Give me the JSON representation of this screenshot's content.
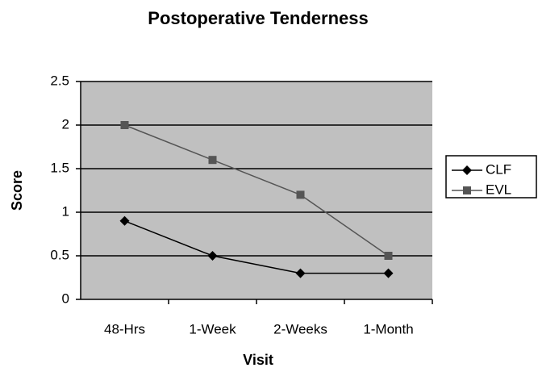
{
  "chart_data": {
    "type": "line",
    "title": "Postoperative Tenderness",
    "x_label": "Visit",
    "y_label": "Score",
    "categories": [
      "48-Hrs",
      "1-Week",
      "2-Weeks",
      "1-Month"
    ],
    "series": [
      {
        "name": "CLF",
        "color": "#000000",
        "marker": "diamond",
        "values": [
          0.9,
          0.5,
          0.3,
          0.3
        ]
      },
      {
        "name": "EVL",
        "color": "#555555",
        "marker": "square",
        "values": [
          2,
          1.6,
          1.2,
          0.5
        ]
      }
    ],
    "ylim": [
      0,
      2.5
    ],
    "yticks": [
      0,
      0.5,
      1,
      1.5,
      2,
      2.5
    ],
    "grid": true,
    "legend": "right"
  }
}
